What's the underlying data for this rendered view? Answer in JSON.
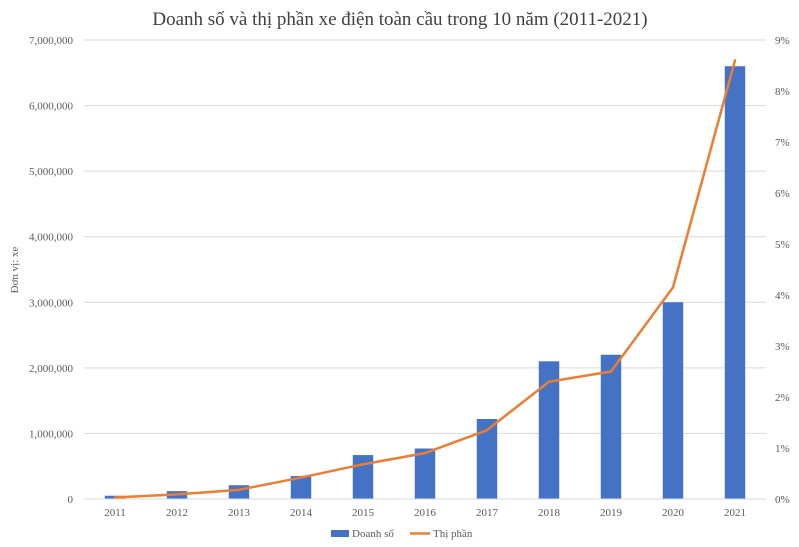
{
  "chart_data": {
    "type": "bar",
    "title": "Doanh số và thị phần xe điện toàn cầu trong 10 năm (2011-2021)",
    "ylabel": "Đơn vị: xe",
    "categories": [
      "2011",
      "2012",
      "2013",
      "2014",
      "2015",
      "2016",
      "2017",
      "2018",
      "2019",
      "2020",
      "2021"
    ],
    "series": [
      {
        "name": "Doanh số",
        "type": "bar",
        "axis": "left",
        "color": "#4472C4",
        "values": [
          50000,
          120000,
          210000,
          350000,
          670000,
          770000,
          1220000,
          2100000,
          2200000,
          3000000,
          6600000
        ]
      },
      {
        "name": "Thị phần",
        "type": "line",
        "axis": "right",
        "color": "#ED7D31",
        "values": [
          0.03,
          0.09,
          0.18,
          0.42,
          0.68,
          0.9,
          1.35,
          2.3,
          2.5,
          4.15,
          8.6
        ]
      }
    ],
    "y_left": {
      "min": 0,
      "max": 7000000,
      "ticks": [
        0,
        1000000,
        2000000,
        3000000,
        4000000,
        5000000,
        6000000,
        7000000
      ],
      "tick_labels": [
        "0",
        "1,000,000",
        "2,000,000",
        "3,000,000",
        "4,000,000",
        "5,000,000",
        "6,000,000",
        "7,000,000"
      ]
    },
    "y_right": {
      "min": 0,
      "max": 9,
      "ticks": [
        0,
        1,
        2,
        3,
        4,
        5,
        6,
        7,
        8,
        9
      ],
      "tick_labels": [
        "0%",
        "1%",
        "2%",
        "3%",
        "4%",
        "5%",
        "6%",
        "7%",
        "8%",
        "9%"
      ]
    },
    "grid": true,
    "legend_position": "bottom"
  }
}
